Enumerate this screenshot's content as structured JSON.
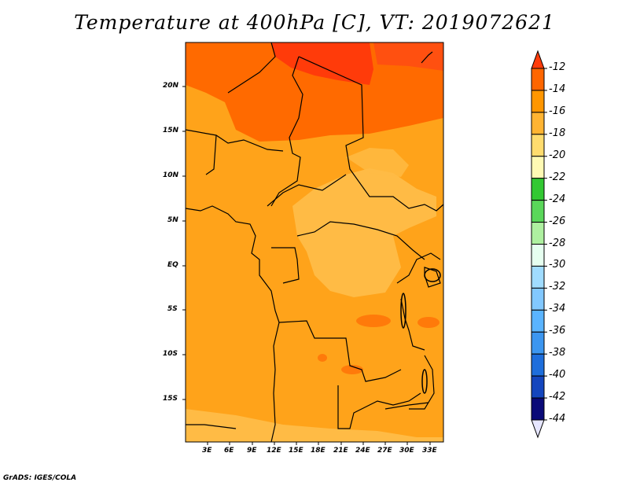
{
  "title": "Temperature at 400hPa [C], VT: 2019072621",
  "credit": "GrADS: IGES/COLA",
  "lat_labels": [
    "20N",
    "15N",
    "10N",
    "5N",
    "EQ",
    "5S",
    "10S",
    "15S"
  ],
  "lon_labels": [
    "3E",
    "6E",
    "9E",
    "12E",
    "15E",
    "18E",
    "21E",
    "24E",
    "27E",
    "30E",
    "33E"
  ],
  "colorbar": {
    "labels": [
      "-12",
      "-14",
      "-16",
      "-18",
      "-20",
      "-22",
      "-24",
      "-26",
      "-28",
      "-30",
      "-32",
      "-34",
      "-36",
      "-38",
      "-40",
      "-42",
      "-44"
    ],
    "colors": [
      "#ff3b0a",
      "#ff6600",
      "#ff9600",
      "#ffb432",
      "#ffdc6e",
      "#fffab4",
      "#32c832",
      "#5ad75a",
      "#aef0a0",
      "#e6fff0",
      "#a0dcff",
      "#82c8ff",
      "#5ab4ff",
      "#3c96f0",
      "#1e6edc",
      "#1446be",
      "#0a0a78",
      "#e6e6ff"
    ]
  },
  "colors": {
    "ocean": "#ff9e00",
    "land_main": "#ffa31a",
    "warm_north": "#ff6a00",
    "warmest": "#ff3b0a",
    "cool_patch": "#ffbb45",
    "border": "#000000"
  }
}
